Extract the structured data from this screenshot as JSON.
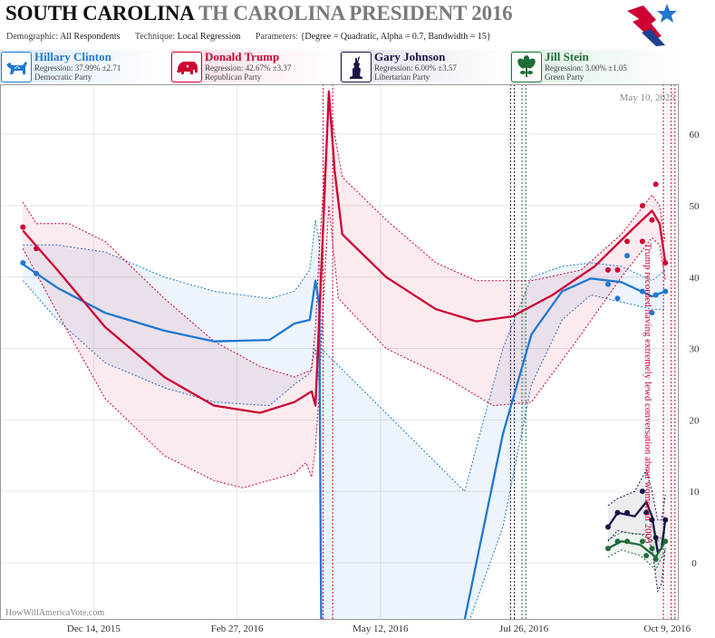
{
  "header": {
    "state": "SOUTH CAROLINA",
    "race": "TH CAROLINA PRESIDENT 2016",
    "demographic_label": "Demographic:",
    "demographic_value": "All Respondents",
    "technique_label": "Technique:",
    "technique_value": "Local Regression",
    "parameters_label": "Parameters:",
    "parameters_value": "{Degree = Quadratic, Alpha = 0.7, Bandwidth = 15}"
  },
  "candidates": [
    {
      "name": "Hillary Clinton",
      "regression": "Regression: 37.99% ±2.71",
      "party": "Democratic Party",
      "color": "#1f78d1",
      "icon": "donkey-icon"
    },
    {
      "name": "Donald Trump",
      "regression": "Regression: 42.67% ±3.37",
      "party": "Republican Party",
      "color": "#cc0033",
      "icon": "elephant-icon"
    },
    {
      "name": "Gary Johnson",
      "regression": "Regression: 6.00% ±3.57",
      "party": "Libertarian Party",
      "color": "#1a1446",
      "icon": "liberty-icon"
    },
    {
      "name": "Jill Stein",
      "regression": "Regression: 3.00% ±1.05",
      "party": "Green Party",
      "color": "#1e6e3a",
      "icon": "leaf-icon"
    }
  ],
  "chart_data": {
    "type": "line",
    "date_label": "May 10, 2025",
    "watermark": "HowWillAmericaVote.com",
    "annotation": "Trump recorded having extremely lewd conversation about women in 2005",
    "x_ticks": [
      "Dec 14, 2015",
      "Feb 27, 2016",
      "May 12, 2016",
      "Jul 26, 2016",
      "Oct 9, 2016"
    ],
    "y_ticks": [
      "0",
      "10",
      "20",
      "30",
      "40",
      "50",
      "60"
    ],
    "ylim": [
      -8,
      67
    ],
    "xlim": [
      "2015-10-26",
      "2016-10-15"
    ],
    "grid": true,
    "series": [
      {
        "name": "Hillary Clinton",
        "color": "#1f78d1",
        "points": [
          [
            "2015-11-07",
            42
          ],
          [
            "2015-11-14",
            40.5
          ],
          [
            "2016-09-08",
            39
          ],
          [
            "2016-09-13",
            37
          ],
          [
            "2016-09-18",
            43
          ],
          [
            "2016-09-26",
            38
          ],
          [
            "2016-10-01",
            35
          ],
          [
            "2016-10-03",
            37.5
          ],
          [
            "2016-10-08",
            38
          ]
        ],
        "line": [
          [
            "2015-11-07",
            41.8
          ],
          [
            "2015-11-25",
            38.5
          ],
          [
            "2015-12-20",
            35
          ],
          [
            "2016-01-20",
            32.5
          ],
          [
            "2016-02-15",
            31
          ],
          [
            "2016-03-15",
            31.2
          ],
          [
            "2016-03-28",
            33.5
          ],
          [
            "2016-04-05",
            34
          ],
          [
            "2016-04-08",
            39.5
          ],
          [
            "2016-04-10",
            36
          ],
          [
            "2016-04-11",
            -10
          ],
          [
            "2016-06-25",
            -8
          ],
          [
            "2016-07-15",
            18
          ],
          [
            "2016-07-30",
            32
          ],
          [
            "2016-08-15",
            38
          ],
          [
            "2016-08-30",
            39.8
          ],
          [
            "2016-09-15",
            39.3
          ],
          [
            "2016-10-01",
            37.3
          ],
          [
            "2016-10-08",
            38
          ]
        ],
        "band_upper": [
          [
            "2015-11-07",
            44.5
          ],
          [
            "2015-11-25",
            44.5
          ],
          [
            "2015-12-20",
            43.5
          ],
          [
            "2016-01-20",
            40
          ],
          [
            "2016-02-15",
            38
          ],
          [
            "2016-03-15",
            37
          ],
          [
            "2016-03-28",
            38
          ],
          [
            "2016-04-05",
            41
          ],
          [
            "2016-04-08",
            48
          ],
          [
            "2016-04-10",
            45
          ],
          [
            "2016-04-11",
            30
          ],
          [
            "2016-06-25",
            10
          ],
          [
            "2016-07-15",
            30
          ],
          [
            "2016-07-30",
            40
          ],
          [
            "2016-08-15",
            41.5
          ],
          [
            "2016-08-30",
            42
          ],
          [
            "2016-09-15",
            41.5
          ],
          [
            "2016-10-01",
            39.5
          ],
          [
            "2016-10-08",
            41
          ]
        ],
        "band_lower": [
          [
            "2015-11-07",
            39.5
          ],
          [
            "2015-11-25",
            34
          ],
          [
            "2015-12-20",
            28
          ],
          [
            "2016-01-20",
            24.5
          ],
          [
            "2016-02-15",
            22.5
          ],
          [
            "2016-03-15",
            22
          ],
          [
            "2016-03-28",
            25
          ],
          [
            "2016-04-05",
            26.5
          ],
          [
            "2016-04-08",
            30
          ],
          [
            "2016-04-10",
            25
          ],
          [
            "2016-04-11",
            -10
          ],
          [
            "2016-06-25",
            -10
          ],
          [
            "2016-07-15",
            5
          ],
          [
            "2016-07-30",
            25
          ],
          [
            "2016-08-15",
            34
          ],
          [
            "2016-08-30",
            37.5
          ],
          [
            "2016-09-15",
            36.5
          ],
          [
            "2016-10-01",
            35.5
          ],
          [
            "2016-10-08",
            35.5
          ]
        ]
      },
      {
        "name": "Donald Trump",
        "color": "#cc0033",
        "points": [
          [
            "2015-11-07",
            47
          ],
          [
            "2015-11-14",
            44
          ],
          [
            "2016-09-08",
            41
          ],
          [
            "2016-09-13",
            41
          ],
          [
            "2016-09-18",
            45
          ],
          [
            "2016-09-26",
            50
          ],
          [
            "2016-09-26",
            45
          ],
          [
            "2016-10-01",
            48
          ],
          [
            "2016-10-03",
            53
          ],
          [
            "2016-10-08",
            42
          ]
        ],
        "line": [
          [
            "2015-11-07",
            46.5
          ],
          [
            "2015-11-25",
            41
          ],
          [
            "2015-12-20",
            33
          ],
          [
            "2016-01-20",
            26
          ],
          [
            "2016-02-15",
            22
          ],
          [
            "2016-03-10",
            21
          ],
          [
            "2016-03-28",
            22.5
          ],
          [
            "2016-04-06",
            24
          ],
          [
            "2016-04-08",
            22
          ],
          [
            "2016-04-09",
            28
          ],
          [
            "2016-04-12",
            47
          ],
          [
            "2016-04-15",
            66
          ],
          [
            "2016-04-18",
            55
          ],
          [
            "2016-04-22",
            46
          ],
          [
            "2016-05-15",
            40
          ],
          [
            "2016-06-10",
            35.5
          ],
          [
            "2016-07-01",
            33.8
          ],
          [
            "2016-07-20",
            34.5
          ],
          [
            "2016-08-10",
            37.5
          ],
          [
            "2016-09-01",
            41.5
          ],
          [
            "2016-09-20",
            46.5
          ],
          [
            "2016-10-01",
            49.3
          ],
          [
            "2016-10-05",
            47.5
          ],
          [
            "2016-10-08",
            42
          ]
        ],
        "band_upper": [
          [
            "2015-11-07",
            50.5
          ],
          [
            "2015-11-14",
            47.5
          ],
          [
            "2015-12-01",
            47.5
          ],
          [
            "2015-12-20",
            45
          ],
          [
            "2016-01-20",
            37
          ],
          [
            "2016-02-15",
            31
          ],
          [
            "2016-03-10",
            27.5
          ],
          [
            "2016-03-28",
            26
          ],
          [
            "2016-04-06",
            27
          ],
          [
            "2016-04-08",
            33
          ],
          [
            "2016-04-10",
            44
          ],
          [
            "2016-04-13",
            56
          ],
          [
            "2016-04-15",
            64
          ],
          [
            "2016-04-18",
            60
          ],
          [
            "2016-04-22",
            54
          ],
          [
            "2016-05-15",
            48
          ],
          [
            "2016-06-10",
            42
          ],
          [
            "2016-07-01",
            39.5
          ],
          [
            "2016-07-30",
            39.5
          ],
          [
            "2016-08-25",
            41
          ],
          [
            "2016-09-15",
            46
          ],
          [
            "2016-10-01",
            51.5
          ],
          [
            "2016-10-05",
            50
          ],
          [
            "2016-10-08",
            45
          ]
        ],
        "band_lower": [
          [
            "2015-11-07",
            44
          ],
          [
            "2015-11-25",
            35
          ],
          [
            "2015-12-20",
            23
          ],
          [
            "2016-01-20",
            15
          ],
          [
            "2016-02-15",
            11.5
          ],
          [
            "2016-03-01",
            10.5
          ],
          [
            "2016-03-28",
            12.5
          ],
          [
            "2016-04-03",
            14
          ],
          [
            "2016-04-06",
            12
          ],
          [
            "2016-04-08",
            16
          ],
          [
            "2016-04-10",
            24
          ],
          [
            "2016-04-12",
            36
          ],
          [
            "2016-04-15",
            50
          ],
          [
            "2016-04-20",
            37
          ],
          [
            "2016-05-15",
            30
          ],
          [
            "2016-06-15",
            26
          ],
          [
            "2016-07-10",
            22
          ],
          [
            "2016-07-30",
            22.5
          ],
          [
            "2016-08-25",
            32
          ],
          [
            "2016-09-15",
            40
          ],
          [
            "2016-10-01",
            45.5
          ],
          [
            "2016-10-05",
            44.5
          ],
          [
            "2016-10-08",
            39.5
          ]
        ]
      },
      {
        "name": "Gary Johnson",
        "color": "#1a1446",
        "points": [
          [
            "2016-09-08",
            5
          ],
          [
            "2016-09-13",
            7
          ],
          [
            "2016-09-18",
            7
          ],
          [
            "2016-09-26",
            10
          ],
          [
            "2016-09-28",
            7
          ],
          [
            "2016-10-01",
            6
          ],
          [
            "2016-10-03",
            3.5
          ],
          [
            "2016-10-08",
            6
          ]
        ],
        "line": [
          [
            "2016-09-08",
            5
          ],
          [
            "2016-09-13",
            7
          ],
          [
            "2016-09-22",
            6.5
          ],
          [
            "2016-09-28",
            8.5
          ],
          [
            "2016-10-01",
            6.5
          ],
          [
            "2016-10-04",
            1.5
          ],
          [
            "2016-10-06",
            2
          ],
          [
            "2016-10-08",
            6
          ]
        ],
        "band_upper": [
          [
            "2016-09-08",
            8
          ],
          [
            "2016-09-13",
            9
          ],
          [
            "2016-09-22",
            10
          ],
          [
            "2016-09-28",
            13
          ],
          [
            "2016-10-01",
            10
          ],
          [
            "2016-10-04",
            6
          ],
          [
            "2016-10-06",
            6
          ],
          [
            "2016-10-08",
            9.5
          ]
        ],
        "band_lower": [
          [
            "2016-09-08",
            3
          ],
          [
            "2016-09-13",
            4.5
          ],
          [
            "2016-09-22",
            4
          ],
          [
            "2016-09-28",
            4
          ],
          [
            "2016-10-01",
            2
          ],
          [
            "2016-10-04",
            -4
          ],
          [
            "2016-10-06",
            -3
          ],
          [
            "2016-10-08",
            2
          ]
        ]
      },
      {
        "name": "Jill Stein",
        "color": "#1e6e3a",
        "points": [
          [
            "2016-09-08",
            2
          ],
          [
            "2016-09-13",
            3
          ],
          [
            "2016-09-18",
            3
          ],
          [
            "2016-09-26",
            3
          ],
          [
            "2016-09-28",
            1
          ],
          [
            "2016-10-01",
            2
          ],
          [
            "2016-10-03",
            0.5
          ],
          [
            "2016-10-08",
            3
          ]
        ],
        "line": [
          [
            "2016-09-08",
            2
          ],
          [
            "2016-09-15",
            3
          ],
          [
            "2016-09-25",
            2.5
          ],
          [
            "2016-10-03",
            0.8
          ],
          [
            "2016-10-08",
            3
          ]
        ],
        "band_upper": [
          [
            "2016-09-08",
            3.2
          ],
          [
            "2016-09-15",
            4.3
          ],
          [
            "2016-09-25",
            4
          ],
          [
            "2016-10-03",
            2.8
          ],
          [
            "2016-10-08",
            4.2
          ]
        ],
        "band_lower": [
          [
            "2016-09-08",
            0.8
          ],
          [
            "2016-09-15",
            1.8
          ],
          [
            "2016-09-25",
            1
          ],
          [
            "2016-10-03",
            -1
          ],
          [
            "2016-10-08",
            1.8
          ]
        ]
      }
    ],
    "event_lines": [
      {
        "color": "#cc0033",
        "dates": [
          "2016-04-12",
          "2016-04-17"
        ]
      },
      {
        "color": "#1a1446",
        "dates": [
          "2016-07-19",
          "2016-07-21"
        ]
      },
      {
        "color": "#1e6e3a",
        "dates": [
          "2016-07-25",
          "2016-07-27"
        ]
      },
      {
        "color": "#cc0033",
        "dates": [
          "2016-10-07",
          "2016-10-11",
          "2016-10-13"
        ]
      }
    ]
  }
}
